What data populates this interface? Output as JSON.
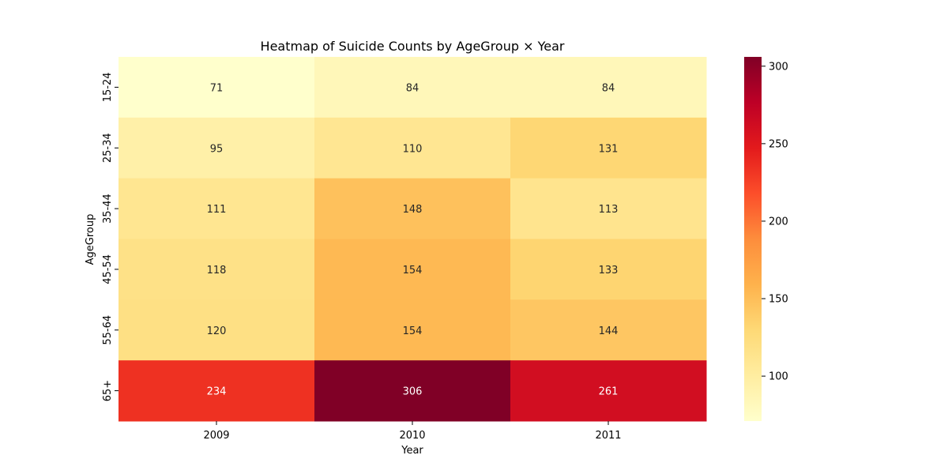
{
  "chart_data": {
    "type": "heatmap",
    "title": "Heatmap of Suicide Counts by AgeGroup × Year",
    "xlabel": "Year",
    "ylabel": "AgeGroup",
    "x_categories": [
      "2009",
      "2010",
      "2011"
    ],
    "y_categories": [
      "15-24",
      "25-34",
      "35-44",
      "45-54",
      "55-64",
      "65+"
    ],
    "values": [
      [
        71,
        84,
        84
      ],
      [
        95,
        110,
        131
      ],
      [
        111,
        148,
        113
      ],
      [
        118,
        154,
        133
      ],
      [
        120,
        154,
        144
      ],
      [
        234,
        306,
        261
      ]
    ],
    "colormap": "YlOrRd",
    "color_stops": [
      "#ffffcc",
      "#ffeda0",
      "#fed976",
      "#feb24c",
      "#fd8d3c",
      "#fc4e2a",
      "#e31a1c",
      "#bd0026",
      "#800026"
    ],
    "value_range": [
      71,
      306
    ],
    "colorbar_ticks": [
      100,
      150,
      200,
      250,
      300
    ],
    "grid": false,
    "annotations": true
  }
}
